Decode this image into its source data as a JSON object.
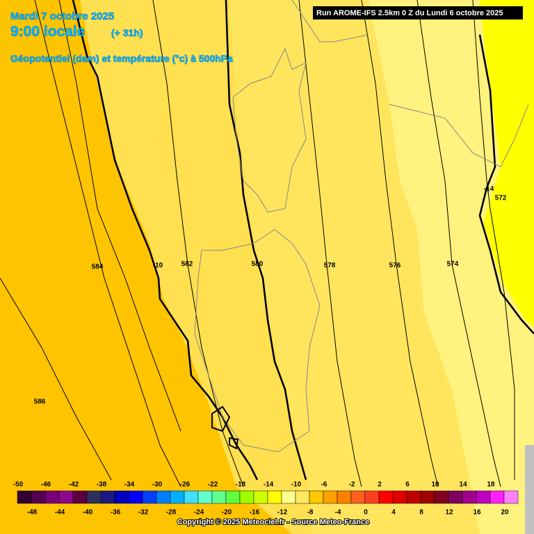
{
  "header": {
    "date": "Mardi 7 octobre 2025",
    "time": "9:00 locale",
    "lead": "(+ 31h)",
    "subtitle": "Géopotentiel (dam) et température (°c) à 500hPa"
  },
  "run": "Run AROME-IFS 2.5km 0 Z du Lundi 6 octobre 2025",
  "contours": [
    {
      "label": "584"
    },
    {
      "label": "-10"
    },
    {
      "label": "582"
    },
    {
      "label": "580"
    },
    {
      "label": "578"
    },
    {
      "label": "576"
    },
    {
      "label": "574"
    },
    {
      "label": "-14"
    },
    {
      "label": "572"
    },
    {
      "label": "586"
    }
  ],
  "colorbar": {
    "labels": [
      "-50",
      "-48",
      "-46",
      "-44",
      "-42",
      "-40",
      "-38",
      "-36",
      "-34",
      "-32",
      "-30",
      "-28",
      "-26",
      "-24",
      "-22",
      "-20",
      "-18",
      "-16",
      "-14",
      "-12",
      "-10",
      "-8",
      "-6",
      "-4",
      "-2",
      "0",
      "2",
      "4",
      "6",
      "8",
      "10",
      "12",
      "14",
      "16",
      "18",
      "20"
    ],
    "colors": [
      "#32002f",
      "#520052",
      "#7a007a",
      "#8c088c",
      "#5a0040",
      "#303060",
      "#1a1a80",
      "#0000c0",
      "#0000ff",
      "#0040ff",
      "#0080ff",
      "#00b0ff",
      "#40e0ff",
      "#60ffd0",
      "#60ff90",
      "#60ff40",
      "#a0ff00",
      "#d0ff00",
      "#ffff00",
      "#ffff90",
      "#ffe860",
      "#ffc800",
      "#ffa000",
      "#ff8000",
      "#ff6020",
      "#ff4020",
      "#ff0000",
      "#e00000",
      "#c00000",
      "#a00000",
      "#800020",
      "#800060",
      "#a00090",
      "#c000c0",
      "#ff20ff",
      "#ff80ff"
    ]
  },
  "copyright": "Copyright © 2025 Meteociel.fr - Source Meteo-France"
}
